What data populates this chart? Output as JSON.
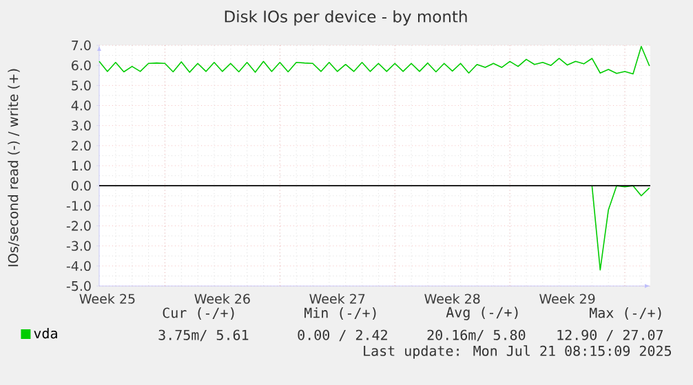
{
  "chart_data": {
    "type": "line",
    "title": "Disk IOs per device - by month",
    "ylabel": "IOs/second read (-) / write (+)",
    "categories": [
      null,
      "Week 25",
      null,
      null,
      null,
      null,
      null,
      null,
      null,
      null,
      null,
      null,
      null,
      null,
      null,
      "Week 26",
      null,
      null,
      null,
      null,
      null,
      null,
      null,
      null,
      null,
      null,
      null,
      null,
      null,
      "Week 27",
      null,
      null,
      null,
      null,
      null,
      null,
      null,
      null,
      null,
      null,
      null,
      null,
      null,
      "Week 28",
      null,
      null,
      null,
      null,
      null,
      null,
      null,
      null,
      null,
      null,
      null,
      null,
      null,
      "Week 29",
      null,
      null,
      null,
      null,
      null,
      null,
      null,
      null,
      null,
      null
    ],
    "ylim": [
      -5,
      7
    ],
    "yticks": [
      {
        "value": -5,
        "label": "-5.0"
      },
      {
        "value": -4,
        "label": "-4.0"
      },
      {
        "value": -3,
        "label": "-3.0"
      },
      {
        "value": -2,
        "label": "-2.0"
      },
      {
        "value": -1,
        "label": "-1.0"
      },
      {
        "value": 0,
        "label": "0.0"
      },
      {
        "value": 1,
        "label": "1.0"
      },
      {
        "value": 2,
        "label": "2.0"
      },
      {
        "value": 3,
        "label": "3.0"
      },
      {
        "value": 4,
        "label": "4.0"
      },
      {
        "value": 5,
        "label": "5.0"
      },
      {
        "value": 6,
        "label": "6.0"
      },
      {
        "value": 7,
        "label": "7.0"
      }
    ],
    "grid": true,
    "legend": "bottom",
    "ref_lines": [
      {
        "axis": "y",
        "value": 0,
        "color": "#000000"
      }
    ],
    "series": [
      {
        "name": "vda",
        "color": "#00cc00",
        "values": [
          6.2,
          5.7,
          6.15,
          5.68,
          5.95,
          5.7,
          6.1,
          6.12,
          6.1,
          5.68,
          6.18,
          5.66,
          6.1,
          5.7,
          6.15,
          5.7,
          6.1,
          5.68,
          6.15,
          5.66,
          6.2,
          5.7,
          6.15,
          5.68,
          6.15,
          6.12,
          6.1,
          5.7,
          6.15,
          5.7,
          6.05,
          5.7,
          6.15,
          5.7,
          6.1,
          5.7,
          6.1,
          5.7,
          6.1,
          5.7,
          6.12,
          5.68,
          6.1,
          5.72,
          6.1,
          5.62,
          6.05,
          5.9,
          6.1,
          5.9,
          6.2,
          5.95,
          6.3,
          6.05,
          6.15,
          6.0,
          6.35,
          6.02,
          6.2,
          6.08,
          6.35,
          5.62,
          5.8,
          5.6,
          5.7,
          5.58,
          6.95,
          5.97
        ]
      },
      {
        "color": "#00cc00",
        "values": [
          null,
          null,
          null,
          null,
          null,
          null,
          null,
          null,
          null,
          null,
          null,
          null,
          null,
          null,
          null,
          null,
          null,
          null,
          null,
          null,
          null,
          null,
          null,
          null,
          null,
          null,
          null,
          null,
          null,
          null,
          null,
          null,
          null,
          null,
          null,
          null,
          null,
          null,
          null,
          null,
          null,
          null,
          null,
          null,
          null,
          null,
          null,
          null,
          null,
          null,
          null,
          null,
          null,
          null,
          null,
          null,
          null,
          null,
          null,
          null,
          0,
          -4.2,
          -1.2,
          0,
          -0.05,
          0,
          -0.5,
          -0.1
        ]
      }
    ],
    "annotations": [
      "Cur (-/+)",
      "Min (-/+)",
      "Avg (-/+)",
      "Max (-/+)",
      "3.75m/  5.61",
      "0.00 /  2.42",
      "20.16m/  5.80",
      "12.90 / 27.07",
      "Last update: Mon Jul 21 08:15:09 2025"
    ]
  }
}
